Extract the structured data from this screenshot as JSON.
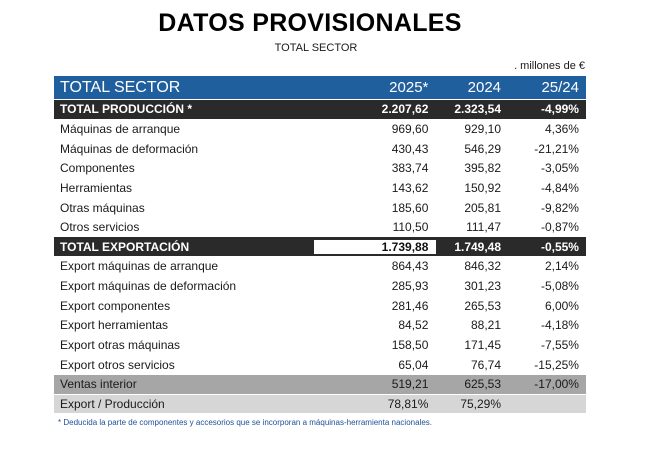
{
  "title": "DATOS PROVISIONALES",
  "subtitle": "TOTAL SECTOR",
  "units": ". millones de €",
  "header": {
    "label": "TOTAL SECTOR",
    "col1": "2025*",
    "col2": "2024",
    "col3": "25/24"
  },
  "rows": [
    {
      "label": "TOTAL PRODUCCIÓN *",
      "v2025": "2.207,62",
      "v2024": "2.323,54",
      "pct": "-4,99%"
    },
    {
      "label": "Máquinas de arranque",
      "v2025": "969,60",
      "v2024": "929,10",
      "pct": "4,36%"
    },
    {
      "label": "Máquinas de deformación",
      "v2025": "430,43",
      "v2024": "546,29",
      "pct": "-21,21%"
    },
    {
      "label": "Componentes",
      "v2025": "383,74",
      "v2024": "395,82",
      "pct": "-3,05%"
    },
    {
      "label": "Herramientas",
      "v2025": "143,62",
      "v2024": "150,92",
      "pct": "-4,84%"
    },
    {
      "label": "Otras máquinas",
      "v2025": "185,60",
      "v2024": "205,81",
      "pct": "-9,82%"
    },
    {
      "label": "Otros servicios",
      "v2025": "110,50",
      "v2024": "111,47",
      "pct": "-0,87%"
    },
    {
      "label": "TOTAL EXPORTACIÓN",
      "v2025": "1.739,88",
      "v2024": "1.749,48",
      "pct": "-0,55%"
    },
    {
      "label": "Export máquinas de arranque",
      "v2025": "864,43",
      "v2024": "846,32",
      "pct": "2,14%"
    },
    {
      "label": "Export máquinas de deformación",
      "v2025": "285,93",
      "v2024": "301,23",
      "pct": "-5,08%"
    },
    {
      "label": "Export componentes",
      "v2025": "281,46",
      "v2024": "265,53",
      "pct": "6,00%"
    },
    {
      "label": "Export herramientas",
      "v2025": "84,52",
      "v2024": "88,21",
      "pct": "-4,18%"
    },
    {
      "label": "Export otras máquinas",
      "v2025": "158,50",
      "v2024": "171,45",
      "pct": "-7,55%"
    },
    {
      "label": "Export otros servicios",
      "v2025": "65,04",
      "v2024": "76,74",
      "pct": "-15,25%"
    },
    {
      "label": "Ventas interior",
      "v2025": "519,21",
      "v2024": "625,53",
      "pct": "-17,00%"
    },
    {
      "label": "Export / Producción",
      "v2025": "78,81%",
      "v2024": "75,29%",
      "pct": ""
    }
  ],
  "footnote": "* Deducida la parte de componentes y accesorios que se incorporan a máquinas-herramienta nacionales."
}
